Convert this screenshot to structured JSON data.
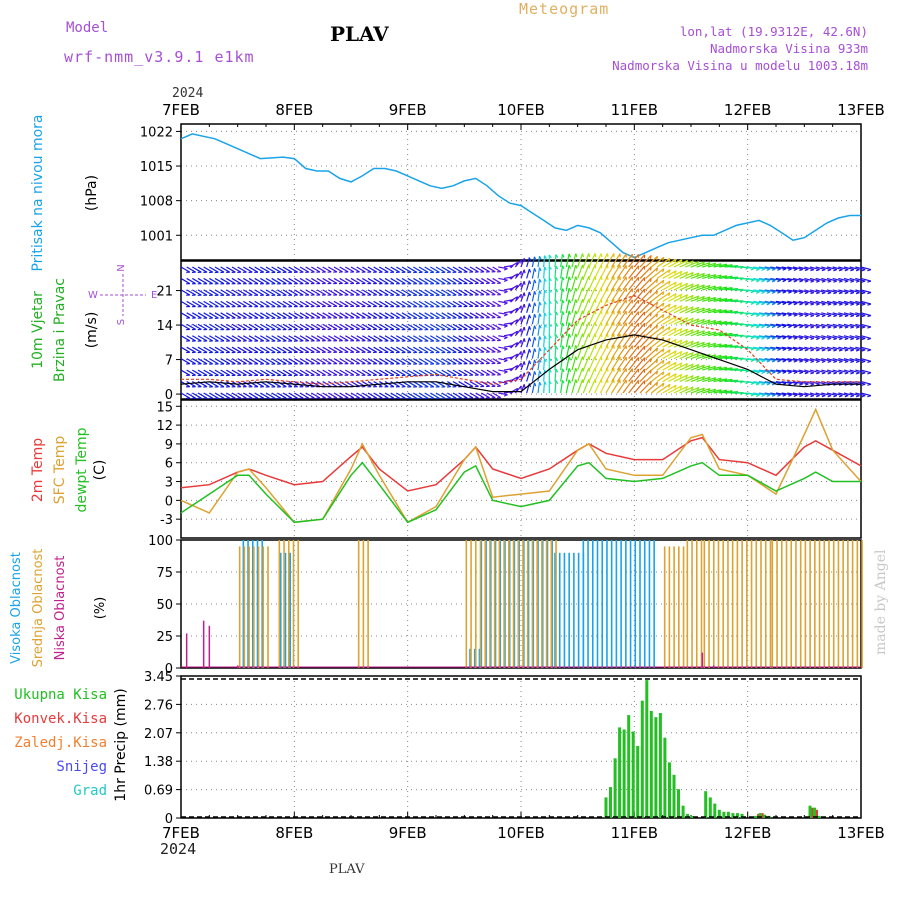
{
  "header": {
    "model_label": "Model",
    "model_name": "wrf-nmm_v3.9.1 e1km",
    "station": "PLAV",
    "title": "Meteogram",
    "coords": "lon,lat (19.9312E, 42.6N)",
    "elevation": "Nadmorska Visina 933m",
    "model_elevation": "Nadmorska Visina u modelu 1003.18m",
    "footer_station": "PLAV",
    "credit": "made by Angel",
    "year": "2024"
  },
  "colors": {
    "pressure": "#1aa3e8",
    "wind_label": "#22b022",
    "temp2m": "#e83a3a",
    "sfc_temp": "#dca232",
    "dewpoint": "#22c022",
    "high_cloud": "#1aa3e8",
    "mid_cloud": "#dca232",
    "low_cloud": "#c0208c",
    "total_precip": "#22c022",
    "conv_precip": "#e83a3a",
    "freezing_precip": "#f08030",
    "snow": "#4a4af0",
    "graupel": "#22c8c8",
    "label_purple": "#a64fd6"
  },
  "x_axis": {
    "ticks": [
      "7FEB",
      "8FEB",
      "9FEB",
      "10FEB",
      "11FEB",
      "12FEB",
      "13FEB"
    ],
    "range_days": [
      0,
      6
    ]
  },
  "chart_data": [
    {
      "panel": "pressure",
      "type": "line",
      "ylabel": [
        "Pritisak na nivou mora",
        "(hPa)"
      ],
      "ylim": [
        996,
        1023.5
      ],
      "yticks": [
        "1022",
        "1015",
        "1008",
        "1001"
      ],
      "grid": true,
      "x": [
        0,
        0.1,
        0.3,
        0.5,
        0.7,
        0.9,
        1.0,
        1.1,
        1.2,
        1.3,
        1.4,
        1.5,
        1.6,
        1.7,
        1.8,
        1.9,
        2.0,
        2.1,
        2.2,
        2.3,
        2.4,
        2.5,
        2.6,
        2.7,
        2.8,
        2.9,
        3.0,
        3.1,
        3.2,
        3.3,
        3.4,
        3.5,
        3.6,
        3.7,
        3.8,
        3.9,
        4.0,
        4.1,
        4.2,
        4.3,
        4.4,
        4.5,
        4.6,
        4.7,
        4.8,
        4.9,
        5.0,
        5.1,
        5.2,
        5.3,
        5.4,
        5.5,
        5.6,
        5.7,
        5.8,
        5.9,
        6.0
      ],
      "values": [
        1020.5,
        1021.5,
        1020.5,
        1018.5,
        1016.5,
        1016.8,
        1016.5,
        1014.5,
        1014.0,
        1014.0,
        1012.5,
        1011.8,
        1013.0,
        1014.5,
        1014.5,
        1014.0,
        1013.0,
        1012.0,
        1011.0,
        1010.5,
        1011.0,
        1012.0,
        1012.5,
        1011.0,
        1009.0,
        1007.5,
        1007.0,
        1005.5,
        1004.0,
        1002.5,
        1002.0,
        1003.0,
        1002.5,
        1001.5,
        999.5,
        997.5,
        996.5,
        997.5,
        998.5,
        999.5,
        1000.0,
        1000.5,
        1001.0,
        1001.0,
        1002.0,
        1003.0,
        1003.5,
        1004.0,
        1003.0,
        1001.5,
        1000.0,
        1000.5,
        1002.0,
        1003.5,
        1004.5,
        1005.0,
        1005.0
      ]
    },
    {
      "panel": "wind",
      "type": "line",
      "ylabel": [
        "10m Vjetar",
        "Brzina i Pravac",
        "(m/s)"
      ],
      "compass": {
        "n": "N",
        "s": "S",
        "e": "E",
        "w": "W"
      },
      "ylim": [
        -1,
        27
      ],
      "yticks": [
        "0",
        "7",
        "14",
        "21"
      ],
      "grid": true,
      "x": [
        0,
        0.25,
        0.5,
        0.75,
        1.0,
        1.25,
        1.5,
        1.75,
        2.0,
        2.25,
        2.5,
        2.75,
        3.0,
        3.25,
        3.5,
        3.75,
        4.0,
        4.25,
        4.5,
        4.75,
        5.0,
        5.25,
        5.5,
        5.75,
        6.0
      ],
      "speed": [
        2,
        2.5,
        2,
        2.5,
        2,
        1.5,
        1.5,
        2,
        2.5,
        2.5,
        1.5,
        0.5,
        0.5,
        5,
        9,
        11,
        12,
        11,
        9,
        7,
        5,
        2,
        1.5,
        2,
        2
      ],
      "gust": [
        3,
        3,
        2.5,
        3,
        2.5,
        2,
        2.5,
        3,
        3.5,
        4,
        3,
        2,
        3,
        9,
        15,
        18,
        20,
        17,
        14,
        13,
        9,
        3,
        2.5,
        2.5,
        2.5
      ],
      "direction_deg": [
        300,
        300,
        300,
        300,
        300,
        300,
        300,
        300,
        300,
        300,
        300,
        300,
        200,
        180,
        200,
        210,
        220,
        240,
        250,
        260,
        280,
        280,
        285,
        285,
        285
      ]
    },
    {
      "panel": "temperature",
      "type": "line",
      "ylabel": [
        "2m Temp",
        "SFC Temp",
        "dewpt Temp",
        "(C)"
      ],
      "ylim": [
        -6,
        16
      ],
      "yticks": [
        "15",
        "12",
        "9",
        "6",
        "3",
        "0",
        "-3"
      ],
      "grid": true,
      "x": [
        0,
        0.25,
        0.5,
        0.6,
        0.75,
        1.0,
        1.25,
        1.5,
        1.6,
        1.75,
        2.0,
        2.25,
        2.5,
        2.6,
        2.75,
        3.0,
        3.25,
        3.5,
        3.6,
        3.75,
        4.0,
        4.25,
        4.5,
        4.6,
        4.75,
        5.0,
        5.25,
        5.5,
        5.6,
        5.75,
        6.0
      ],
      "series": [
        {
          "name": "2m Temp",
          "values": [
            2,
            2.5,
            4.5,
            5,
            4,
            2.5,
            3,
            7,
            8.5,
            5,
            1.5,
            2.5,
            6.5,
            8.5,
            5,
            3.5,
            5,
            8,
            9,
            7.5,
            6.5,
            6.5,
            9.5,
            10,
            6.5,
            6,
            4,
            8.5,
            9.5,
            8,
            5.5
          ]
        },
        {
          "name": "SFC Temp",
          "values": [
            0,
            -2,
            4.5,
            5,
            2,
            -3.5,
            -3,
            5,
            9,
            4,
            -3.5,
            -1,
            6.5,
            8.5,
            0.5,
            1,
            1.5,
            8,
            9,
            5,
            4,
            4,
            10,
            10.5,
            5,
            4,
            1,
            10.5,
            14.5,
            8,
            3
          ]
        },
        {
          "name": "dewpt Temp",
          "values": [
            -2,
            1,
            4,
            4,
            1,
            -3.5,
            -3,
            4,
            6,
            2.5,
            -3.5,
            -1.5,
            4.5,
            5.5,
            0,
            -1,
            0,
            5.5,
            6,
            3.5,
            3,
            3.5,
            5.5,
            6,
            4,
            4,
            1.5,
            3.5,
            4.5,
            3,
            3
          ]
        }
      ]
    },
    {
      "panel": "clouds",
      "type": "bar",
      "ylabel": [
        "Visoka Oblacnost",
        "Srednja Oblacnost",
        "Niska Oblacnost",
        "(%)"
      ],
      "ylim": [
        0,
        100
      ],
      "yticks": [
        "100",
        "75",
        "50",
        "25",
        "0"
      ],
      "grid": true,
      "series": [
        {
          "name": "Visoka Oblacnost",
          "segments": [
            [
              0.55,
              0.72,
              100
            ],
            [
              0.88,
              1.0,
              90
            ],
            [
              2.55,
              2.65,
              15
            ],
            [
              2.65,
              3.3,
              100
            ],
            [
              3.3,
              3.55,
              90
            ],
            [
              3.55,
              4.2,
              100
            ]
          ]
        },
        {
          "name": "Srednja Oblacnost",
          "segments": [
            [
              0.5,
              0.75,
              95
            ],
            [
              0.85,
              1.05,
              100
            ],
            [
              1.55,
              1.65,
              100
            ],
            [
              2.5,
              3.3,
              100
            ],
            [
              4.25,
              4.45,
              95
            ],
            [
              4.45,
              4.6,
              100
            ],
            [
              4.6,
              5.2,
              100
            ],
            [
              5.2,
              6.0,
              100
            ]
          ]
        },
        {
          "name": "Niska Oblacnost",
          "bars": [
            [
              0.05,
              27
            ],
            [
              0.2,
              37
            ],
            [
              0.25,
              33
            ],
            [
              0.5,
              2
            ],
            [
              4.6,
              12
            ],
            [
              4.7,
              2
            ]
          ]
        }
      ]
    },
    {
      "panel": "precipitation",
      "type": "bar",
      "ylabel": [
        "1hr Precip (mm)"
      ],
      "legend": [
        "Ukupna Kisa",
        "Konvek.Kisa",
        "Zaledj.Kisa",
        "Snijeg",
        "Grad"
      ],
      "ylim": [
        0,
        3.45
      ],
      "yticks": [
        "3.45",
        "2.76",
        "2.07",
        "1.38",
        "0.69",
        "0"
      ],
      "grid": true,
      "x": [
        3.75,
        3.79,
        3.83,
        3.87,
        3.91,
        3.95,
        3.99,
        4.03,
        4.07,
        4.11,
        4.15,
        4.19,
        4.23,
        4.27,
        4.31,
        4.35,
        4.39,
        4.43,
        4.47,
        4.51,
        4.55,
        4.59,
        4.63,
        4.67,
        4.71,
        4.75,
        4.79,
        4.83,
        4.87,
        4.91,
        4.95,
        4.99,
        5.03,
        5.07,
        5.11,
        5.15,
        5.19,
        5.23,
        5.27,
        5.31,
        5.35,
        5.39,
        5.43,
        5.47,
        5.51,
        5.55,
        5.59,
        5.63,
        5.67,
        5.71
      ],
      "total": [
        0.5,
        0.75,
        1.45,
        2.2,
        2.15,
        2.5,
        2.1,
        1.75,
        2.85,
        3.35,
        2.6,
        2.45,
        2.55,
        1.95,
        1.35,
        1.05,
        0.7,
        0.3,
        0.1,
        0.05,
        0.0,
        0.0,
        0.65,
        0.5,
        0.35,
        0.2,
        0.15,
        0.15,
        0.12,
        0.12,
        0.1,
        0.0,
        0.0,
        0.05,
        0.12,
        0.08,
        0.05,
        0.0,
        0.0,
        0.0,
        0.0,
        0.0,
        0.0,
        0.0,
        0.0,
        0.3,
        0.25,
        0.05,
        0.0,
        0.0
      ],
      "convective": [
        0,
        0,
        0,
        0,
        0,
        0,
        0,
        0,
        0,
        0,
        0,
        0,
        0,
        0,
        0,
        0,
        0,
        0,
        0,
        0,
        0,
        0,
        0,
        0,
        0,
        0,
        0,
        0,
        0,
        0,
        0,
        0,
        0,
        0.1,
        0.12,
        0,
        0,
        0,
        0,
        0,
        0,
        0,
        0,
        0,
        0,
        0.25,
        0.2,
        0,
        0,
        0
      ]
    }
  ]
}
